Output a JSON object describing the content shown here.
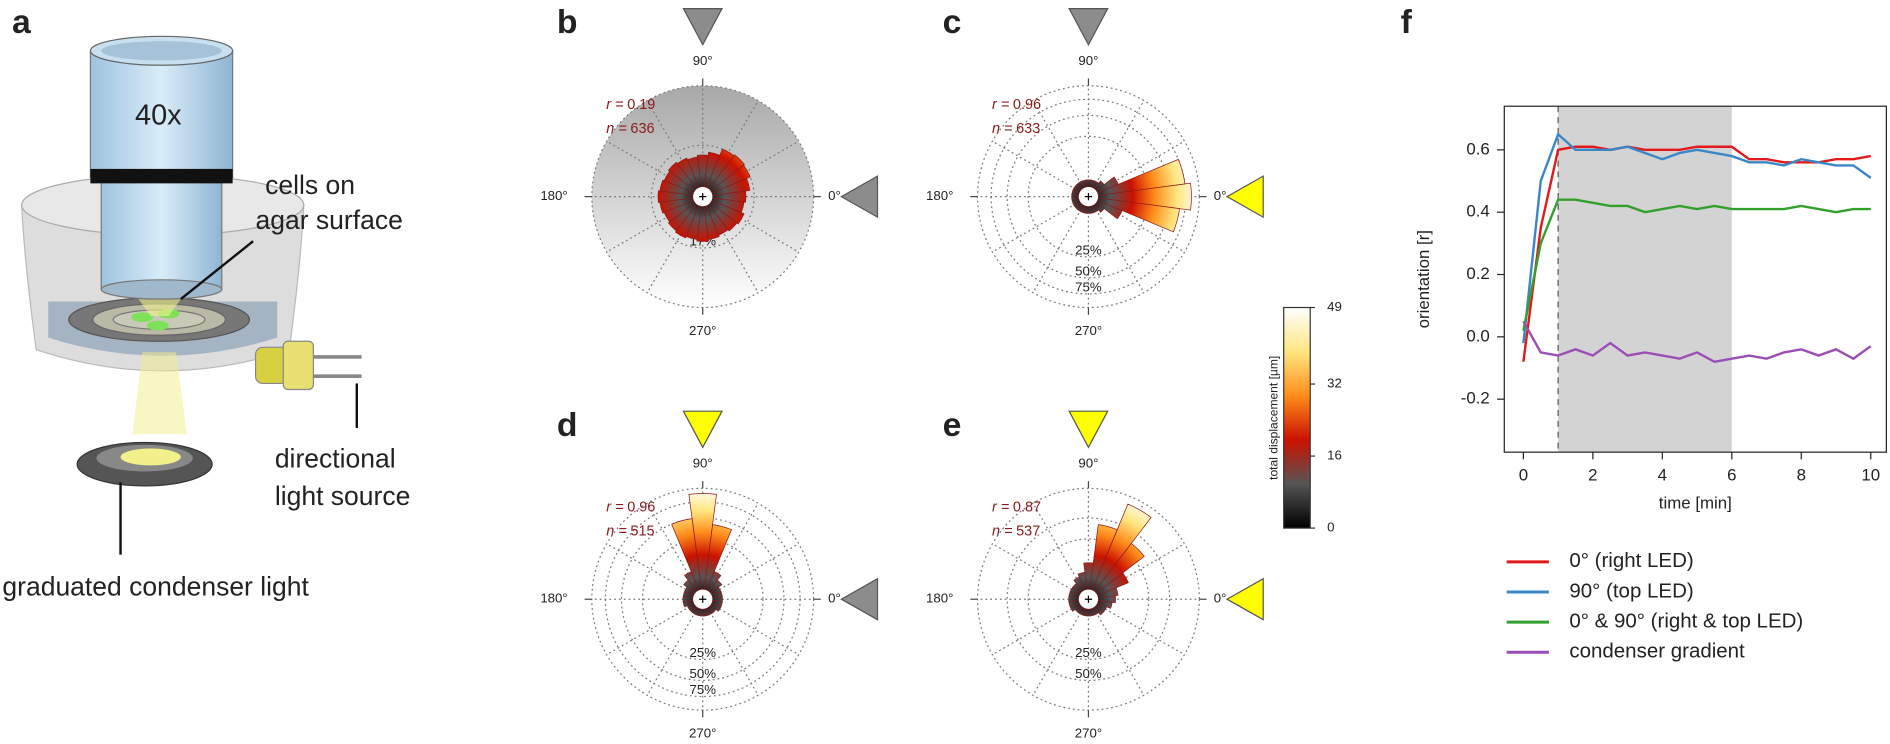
{
  "diagram": {
    "letter": "a",
    "objective": "40x",
    "labels": [
      [
        "cells on",
        "agar surface"
      ],
      [
        "directional",
        "light source"
      ],
      [
        "graduated condenser light"
      ]
    ]
  },
  "chart_data": [
    {
      "type": "polar",
      "letter": "b",
      "stimulus": {
        "top": "#8c8c8c",
        "right": "#8c8c8c"
      },
      "background": true,
      "stats": [
        {
          "label": "r =",
          "value": 0.19
        },
        {
          "label": "n =",
          "value": 636
        }
      ],
      "angle_ticks": [
        {
          "value": 0,
          "label": "0°"
        },
        {
          "value": 90,
          "label": "90°"
        },
        {
          "value": 180,
          "label": "180°"
        },
        {
          "value": 270,
          "label": "270°"
        }
      ],
      "rlim": [
        0,
        100
      ],
      "rticks": [
        {
          "value": 17,
          "label": "17%"
        }
      ],
      "bin_width": 15,
      "values": [
        11,
        14,
        17,
        18,
        17,
        12,
        10,
        9,
        10,
        11,
        10,
        11,
        12,
        11,
        10,
        11,
        12,
        11,
        12,
        11,
        10,
        11,
        12,
        10
      ]
    },
    {
      "type": "polar",
      "letter": "c",
      "stimulus": {
        "top": "#8c8c8c",
        "right": "#ffff00"
      },
      "background": false,
      "stats": [
        {
          "label": "r =",
          "value": 0.96
        },
        {
          "label": "n =",
          "value": 633
        }
      ],
      "angle_ticks": [
        {
          "value": 0,
          "label": "0°"
        },
        {
          "value": 90,
          "label": "90°"
        },
        {
          "value": 180,
          "label": "180°"
        },
        {
          "value": 270,
          "label": "270°"
        }
      ],
      "rlim": [
        0,
        100
      ],
      "rticks": [
        {
          "value": 25,
          "label": "25%"
        },
        {
          "value": 50,
          "label": "50%"
        },
        {
          "value": 75,
          "label": "75%"
        }
      ],
      "bin_width": 15,
      "values": [
        85,
        75,
        5,
        1,
        0.5,
        0.5,
        0.5,
        0.5,
        0.5,
        0.5,
        0.5,
        0.5,
        0.5,
        0.5,
        0.5,
        0.5,
        0.5,
        0.5,
        0.5,
        0.5,
        0.5,
        1,
        7,
        66
      ]
    },
    {
      "type": "polar",
      "letter": "d",
      "stimulus": {
        "top": "#ffff00",
        "right": "#8c8c8c"
      },
      "background": false,
      "stats": [
        {
          "label": "r =",
          "value": 0.96
        },
        {
          "label": "n =",
          "value": 515
        }
      ],
      "angle_ticks": [
        {
          "value": 0,
          "label": "0°"
        },
        {
          "value": 90,
          "label": "90°"
        },
        {
          "value": 180,
          "label": "180°"
        },
        {
          "value": 270,
          "label": "270°"
        }
      ],
      "rlim": [
        0,
        100
      ],
      "rticks": [
        {
          "value": 25,
          "label": "25%"
        },
        {
          "value": 50,
          "label": "50%"
        },
        {
          "value": 75,
          "label": "75%"
        }
      ],
      "bin_width": 15,
      "values": [
        1,
        1,
        1,
        2,
        4,
        42,
        90,
        50,
        4,
        2,
        1,
        1,
        1,
        1,
        0.5,
        0.5,
        0.5,
        0.5,
        0.5,
        0.5,
        0.5,
        0.5,
        1,
        1
      ]
    },
    {
      "type": "polar",
      "letter": "e",
      "stimulus": {
        "top": "#ffff00",
        "right": "#ffff00"
      },
      "background": false,
      "stats": [
        {
          "label": "r =",
          "value": 0.87
        },
        {
          "label": "n =",
          "value": 537
        }
      ],
      "angle_ticks": [
        {
          "value": 0,
          "label": "0°"
        },
        {
          "value": 90,
          "label": "90°"
        },
        {
          "value": 180,
          "label": "180°"
        },
        {
          "value": 270,
          "label": "270°"
        }
      ],
      "rlim": [
        0,
        100
      ],
      "rticks": [
        {
          "value": 25,
          "label": "25%"
        },
        {
          "value": 50,
          "label": "50%"
        }
      ],
      "bin_width": 15,
      "values": [
        3,
        4,
        11,
        36,
        85,
        42,
        7,
        3,
        2,
        1,
        1,
        1,
        1,
        1,
        1,
        0.5,
        0.5,
        0.5,
        0.5,
        0.5,
        0.5,
        1,
        1,
        2
      ]
    },
    {
      "type": "colorbar",
      "label": "total displacement [µm]",
      "ylim": [
        0,
        49
      ],
      "yticks": [
        0,
        16,
        32,
        49
      ],
      "colors": [
        "#000000",
        "#555555",
        "#cc1100",
        "#ff8c1a",
        "#ffe680",
        "#ffffff"
      ]
    },
    {
      "type": "line",
      "letter": "f",
      "xlabel": "time [min]",
      "ylabel": "orientation [r]",
      "xlim": [
        -0.55,
        10.45
      ],
      "ylim": [
        -0.37,
        0.74
      ],
      "xticks": [
        0,
        2,
        4,
        6,
        8,
        10
      ],
      "yticks": [
        -0.2,
        {
          "value": 0,
          "label": "0.0"
        },
        0.2,
        0.4,
        0.6
      ],
      "shaded": [
        1,
        6
      ],
      "marker_line": 1,
      "x": [
        0,
        0.5,
        1,
        1.5,
        2,
        2.5,
        3,
        3.5,
        4,
        4.5,
        5,
        5.5,
        6,
        6.5,
        7,
        7.5,
        8,
        8.5,
        9,
        9.5,
        10
      ],
      "series": [
        {
          "name": "0° (right LED)",
          "color": "#e31a1c",
          "values": [
            -0.08,
            0.35,
            0.6,
            0.61,
            0.61,
            0.6,
            0.61,
            0.6,
            0.6,
            0.6,
            0.61,
            0.61,
            0.61,
            0.57,
            0.57,
            0.56,
            0.56,
            0.56,
            0.57,
            0.57,
            0.58
          ]
        },
        {
          "name": "90° (top LED)",
          "color": "#3a87c8",
          "values": [
            -0.02,
            0.5,
            0.65,
            0.6,
            0.6,
            0.6,
            0.61,
            0.59,
            0.57,
            0.59,
            0.6,
            0.59,
            0.58,
            0.56,
            0.56,
            0.55,
            0.57,
            0.56,
            0.55,
            0.55,
            0.51
          ]
        },
        {
          "name": "0° & 90° (right & top LED)",
          "color": "#33a02c",
          "values": [
            0.02,
            0.3,
            0.44,
            0.44,
            0.43,
            0.42,
            0.42,
            0.4,
            0.41,
            0.42,
            0.41,
            0.42,
            0.41,
            0.41,
            0.41,
            0.41,
            0.42,
            0.41,
            0.4,
            0.41,
            0.41
          ]
        },
        {
          "name": "condenser gradient",
          "color": "#9b4fb5",
          "values": [
            0.05,
            -0.05,
            -0.06,
            -0.04,
            -0.06,
            -0.02,
            -0.06,
            -0.05,
            -0.06,
            -0.07,
            -0.05,
            -0.08,
            -0.07,
            -0.06,
            -0.07,
            -0.05,
            -0.04,
            -0.06,
            -0.04,
            -0.07,
            -0.03
          ]
        }
      ]
    }
  ]
}
